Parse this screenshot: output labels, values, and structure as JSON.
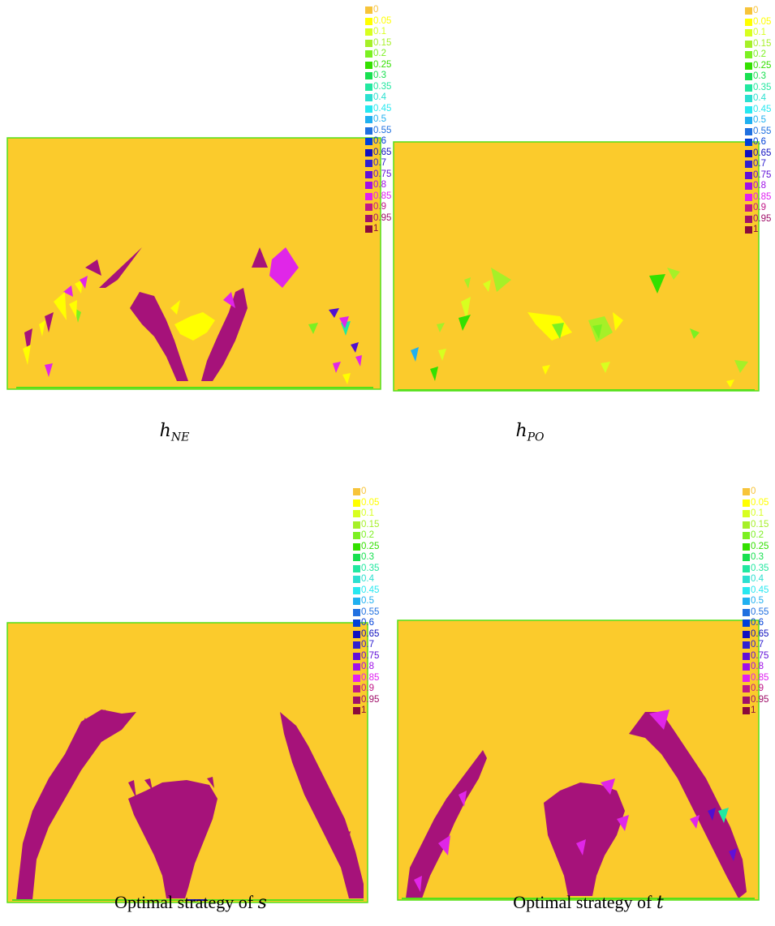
{
  "legend": {
    "labels": [
      "0",
      "0.05",
      "0.1",
      "0.15",
      "0.2",
      "0.25",
      "0.3",
      "0.35",
      "0.4",
      "0.45",
      "0.5",
      "0.55",
      "0.6",
      "0.65",
      "0.7",
      "0.75",
      "0.8",
      "0.85",
      "0.9",
      "0.95",
      "1"
    ],
    "colors": [
      "#f7c43a",
      "#ffff00",
      "#d8ff20",
      "#a6f028",
      "#7cf022",
      "#33e000",
      "#18e050",
      "#22e8a0",
      "#2ce0d0",
      "#28e8f0",
      "#20b0f0",
      "#2070e0",
      "#0040d8",
      "#1010c0",
      "#3020d0",
      "#6010d8",
      "#a010e8",
      "#e020f0",
      "#c01888",
      "#a0106a",
      "#8a0a3c"
    ]
  },
  "colors": {
    "background": "#fbcb2c",
    "border": "#55e01a",
    "dark_magenta": "#a6127a",
    "magenta": "#e026e8"
  },
  "panels": [
    {
      "id": "h_ne",
      "caption_var": "h",
      "caption_sub": "NE"
    },
    {
      "id": "h_po",
      "caption_var": "h",
      "caption_sub": "PO"
    },
    {
      "id": "opt_s",
      "caption_prefix": "Optimal strategy of ",
      "caption_var": "s"
    },
    {
      "id": "opt_t",
      "caption_prefix": "Optimal strategy of ",
      "caption_var": "t"
    }
  ]
}
